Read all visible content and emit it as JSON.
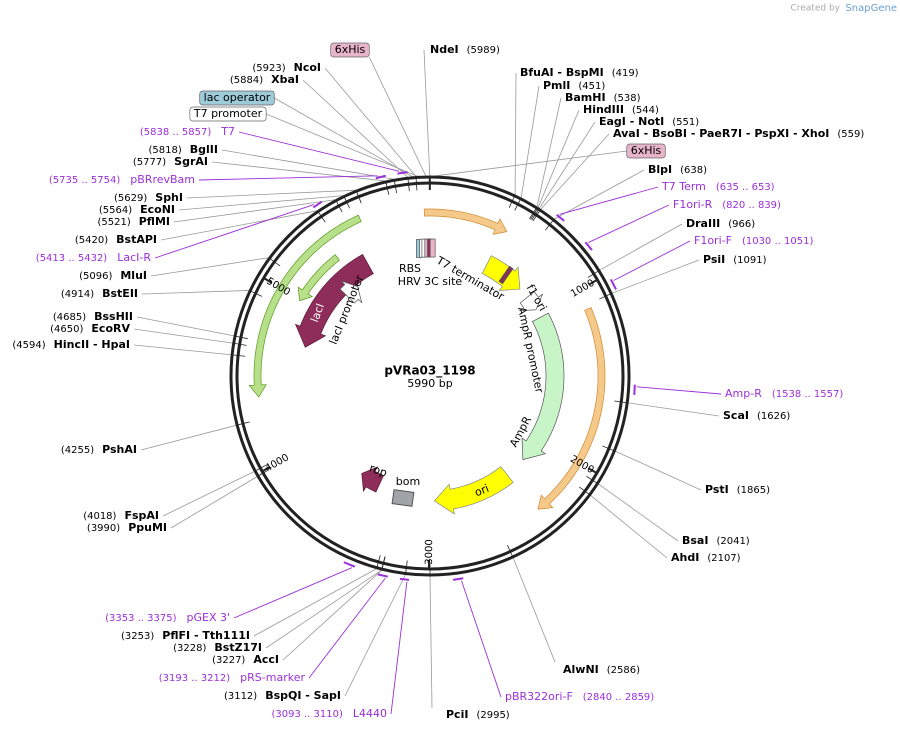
{
  "credit": "Created by",
  "brand": "SnapGene",
  "map": {
    "name": "pVRa03_1198",
    "length": {
      "value": 5990,
      "label": "5990 bp"
    },
    "ticks": [
      1000,
      2000,
      3000,
      4000,
      5000
    ]
  },
  "boxed_features": [
    {
      "label": "6xHis"
    },
    {
      "label": "lac operator"
    },
    {
      "label": "T7 promoter"
    },
    {
      "label": "6xHis"
    }
  ],
  "features": [
    {
      "label": "RBS"
    },
    {
      "label": "HRV 3C site"
    },
    {
      "label": "T7 terminator"
    },
    {
      "label": "f1 ori"
    },
    {
      "label": "AmpR promoter"
    },
    {
      "label": "AmpR"
    },
    {
      "label": "ori"
    },
    {
      "label": "bom"
    },
    {
      "label": "rop"
    },
    {
      "label": "lacI"
    },
    {
      "label": "lacI promoter"
    }
  ],
  "enzymes": [
    {
      "name": "NdeI",
      "site": {
        "value": 5989,
        "label": "(5989)"
      }
    },
    {
      "name": "BfuAI  - BspMI",
      "site": {
        "value": 419,
        "label": "(419)"
      }
    },
    {
      "name": "PmlI",
      "site": {
        "value": 451,
        "label": "(451)"
      }
    },
    {
      "name": "BamHI",
      "site": {
        "value": 538,
        "label": "(538)"
      }
    },
    {
      "name": "HindIII",
      "site": {
        "value": 544,
        "label": "(544)"
      }
    },
    {
      "name": "EagI  - NotI",
      "site": {
        "value": 551,
        "label": "(551)"
      }
    },
    {
      "name": "AvaI  - BsoBI  - PaeR7I  - PspXI  - XhoI",
      "site": {
        "value": 559,
        "label": "(559)"
      }
    },
    {
      "name": "BlpI",
      "site": {
        "value": 638,
        "label": "(638)"
      }
    },
    {
      "name": "DraIII",
      "site": {
        "value": 966,
        "label": "(966)"
      }
    },
    {
      "name": "PsiI",
      "site": {
        "value": 1091,
        "label": "(1091)"
      }
    },
    {
      "name": "ScaI",
      "site": {
        "value": 1626,
        "label": "(1626)"
      }
    },
    {
      "name": "PstI",
      "site": {
        "value": 1865,
        "label": "(1865)"
      }
    },
    {
      "name": "BsaI",
      "site": {
        "value": 2041,
        "label": "(2041)"
      }
    },
    {
      "name": "AhdI",
      "site": {
        "value": 2107,
        "label": "(2107)"
      }
    },
    {
      "name": "AlwNI",
      "site": {
        "value": 2586,
        "label": "(2586)"
      }
    },
    {
      "name": "PciI",
      "site": {
        "value": 2995,
        "label": "(2995)"
      }
    },
    {
      "name": "NcoI",
      "site": {
        "value": 5923,
        "label": "(5923)"
      }
    },
    {
      "name": "XbaI",
      "site": {
        "value": 5884,
        "label": "(5884)"
      }
    },
    {
      "name": "BglII",
      "site": {
        "value": 5818,
        "label": "(5818)"
      }
    },
    {
      "name": "SgrAI",
      "site": {
        "value": 5777,
        "label": "(5777)"
      }
    },
    {
      "name": "SphI",
      "site": {
        "value": 5629,
        "label": "(5629)"
      }
    },
    {
      "name": "EcoNI",
      "site": {
        "value": 5564,
        "label": "(5564)"
      }
    },
    {
      "name": "PflMI",
      "site": {
        "value": 5521,
        "label": "(5521)"
      }
    },
    {
      "name": "BstAPI",
      "site": {
        "value": 5420,
        "label": "(5420)"
      }
    },
    {
      "name": "MluI",
      "site": {
        "value": 5096,
        "label": "(5096)"
      }
    },
    {
      "name": "BstEII",
      "site": {
        "value": 4914,
        "label": "(4914)"
      }
    },
    {
      "name": "BssHII",
      "site": {
        "value": 4685,
        "label": "(4685)"
      }
    },
    {
      "name": "EcoRV",
      "site": {
        "value": 4650,
        "label": "(4650)"
      }
    },
    {
      "name": "HincII  - HpaI",
      "site": {
        "value": 4594,
        "label": "(4594)"
      }
    },
    {
      "name": "PshAI",
      "site": {
        "value": 4255,
        "label": "(4255)"
      }
    },
    {
      "name": "FspAI",
      "site": {
        "value": 4018,
        "label": "(4018)"
      }
    },
    {
      "name": "PpuMI",
      "site": {
        "value": 3990,
        "label": "(3990)"
      }
    },
    {
      "name": "PflFI  - Tth111I",
      "site": {
        "value": 3253,
        "label": "(3253)"
      }
    },
    {
      "name": "BstZ17I",
      "site": {
        "value": 3228,
        "label": "(3228)"
      }
    },
    {
      "name": "AccI",
      "site": {
        "value": 3227,
        "label": "(3227)"
      }
    },
    {
      "name": "BspQI  - SapI",
      "site": {
        "value": 3112,
        "label": "(3112)"
      }
    }
  ],
  "primers": [
    {
      "name": "T7",
      "range": {
        "start": 5838,
        "end": 5857,
        "label": "(5838 .. 5857)"
      }
    },
    {
      "name": "pBRrevBam",
      "range": {
        "start": 5735,
        "end": 5754,
        "label": "(5735 .. 5754)"
      }
    },
    {
      "name": "LacI-R",
      "range": {
        "start": 5413,
        "end": 5432,
        "label": "(5413 .. 5432)"
      }
    },
    {
      "name": "pGEX 3'",
      "range": {
        "start": 3353,
        "end": 3375,
        "label": "(3353 .. 3375)"
      }
    },
    {
      "name": "pRS-marker",
      "range": {
        "start": 3193,
        "end": 3212,
        "label": "(3193 .. 3212)"
      }
    },
    {
      "name": "L4440",
      "range": {
        "start": 3093,
        "end": 3110,
        "label": "(3093 .. 3110)"
      }
    },
    {
      "name": "T7 Term",
      "range": {
        "start": 635,
        "end": 653,
        "label": "(635 .. 653)"
      }
    },
    {
      "name": "F1ori-R",
      "range": {
        "start": 820,
        "end": 839,
        "label": "(820 .. 839)"
      }
    },
    {
      "name": "F1ori-F",
      "range": {
        "start": 1030,
        "end": 1051,
        "label": "(1030 .. 1051)"
      }
    },
    {
      "name": "Amp-R",
      "range": {
        "start": 1538,
        "end": 1557,
        "label": "(1538 .. 1557)"
      }
    },
    {
      "name": "pBR322ori-F",
      "range": {
        "start": 2840,
        "end": 2859,
        "label": "(2840 .. 2859)"
      }
    }
  ]
}
